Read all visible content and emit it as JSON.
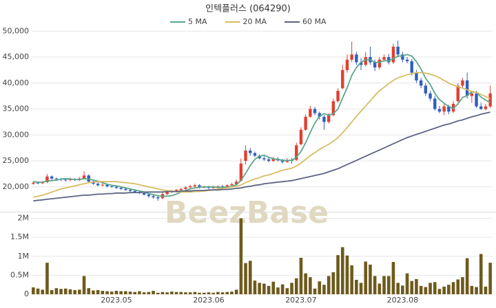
{
  "chart_data": {
    "type": "candlestick",
    "title": "인텍플러스 (064290)",
    "watermark": "BeezBase",
    "up_color": "#e0402f",
    "down_color": "#2f5fc0",
    "volume_color": "#6e5a1c",
    "categories": [
      null,
      null,
      null,
      null,
      null,
      null,
      null,
      null,
      null,
      null,
      null,
      null,
      null,
      null,
      null,
      null,
      null,
      null,
      "2023.05",
      null,
      null,
      null,
      null,
      null,
      null,
      null,
      null,
      null,
      null,
      null,
      null,
      null,
      null,
      null,
      null,
      null,
      null,
      null,
      "2023.06",
      null,
      null,
      null,
      null,
      null,
      null,
      null,
      null,
      null,
      null,
      null,
      null,
      null,
      null,
      null,
      null,
      null,
      null,
      null,
      "2023.07",
      null,
      null,
      null,
      null,
      null,
      null,
      null,
      null,
      null,
      null,
      null,
      null,
      null,
      null,
      null,
      null,
      null,
      null,
      null,
      null,
      null,
      "2023.08",
      null,
      null,
      null,
      null,
      null,
      null,
      null,
      null,
      null,
      null,
      null,
      null,
      null,
      null,
      null,
      null,
      null,
      null,
      null
    ],
    "open": [
      20600,
      20800,
      20700,
      20900,
      22000,
      21600,
      21500,
      21400,
      21300,
      21500,
      21300,
      21600,
      22200,
      21000,
      20600,
      20300,
      20400,
      20100,
      20000,
      19800,
      19600,
      19400,
      19200,
      19000,
      18800,
      18500,
      18200,
      18000,
      17800,
      18600,
      19000,
      19100,
      19400,
      19600,
      19900,
      20100,
      20300,
      19900,
      20000,
      19800,
      19900,
      20100,
      20000,
      20300,
      20500,
      21200,
      25000,
      27000,
      26500,
      26000,
      25500,
      25300,
      25000,
      25400,
      25100,
      24800,
      25200,
      25200,
      28200,
      31000,
      33500,
      35000,
      34200,
      33500,
      32500,
      33800,
      36500,
      39000,
      42500,
      44500,
      45500,
      44000,
      43500,
      45000,
      44000,
      43000,
      44500,
      45000,
      44000,
      47000,
      45500,
      44500,
      44200,
      42000,
      40500,
      39500,
      38000,
      37000,
      35000,
      34500,
      35500,
      34500,
      36500,
      39500,
      40500,
      37500,
      38000,
      35500,
      35000,
      35500
    ],
    "high": [
      21100,
      21000,
      21100,
      22500,
      22200,
      21800,
      21700,
      21600,
      21800,
      21700,
      21900,
      23000,
      22400,
      21300,
      20900,
      20700,
      20600,
      20400,
      20200,
      20000,
      19800,
      19600,
      19500,
      19300,
      19100,
      18800,
      18500,
      18300,
      18900,
      19200,
      19400,
      19600,
      19800,
      20100,
      20400,
      20600,
      20500,
      20200,
      20200,
      20200,
      20300,
      20400,
      20500,
      20800,
      21400,
      25500,
      28000,
      27500,
      26800,
      26300,
      25900,
      25600,
      25800,
      25700,
      25400,
      25500,
      25600,
      28500,
      31500,
      34000,
      35600,
      35400,
      34500,
      33800,
      34200,
      37000,
      39000,
      43500,
      45500,
      48000,
      46000,
      44800,
      46000,
      47000,
      44500,
      45000,
      45500,
      45600,
      47600,
      48200,
      46000,
      45000,
      44600,
      42500,
      41000,
      40000,
      38500,
      37500,
      35600,
      36000,
      35800,
      36500,
      40000,
      41000,
      42000,
      38500,
      38500,
      36200,
      36000,
      39500
    ],
    "low": [
      20400,
      20500,
      20500,
      20700,
      21300,
      21200,
      21100,
      21000,
      21100,
      21100,
      21100,
      21400,
      20800,
      20400,
      20100,
      20100,
      19900,
      19800,
      19600,
      19400,
      19200,
      19000,
      18800,
      18600,
      18300,
      17900,
      17700,
      17300,
      17600,
      18400,
      18800,
      18900,
      19200,
      19400,
      19700,
      19900,
      19700,
      19700,
      19600,
      19600,
      19700,
      19800,
      19800,
      20100,
      20300,
      21000,
      24300,
      26000,
      25700,
      25300,
      25000,
      24700,
      24800,
      24900,
      24500,
      24600,
      24500,
      25000,
      28000,
      30800,
      33300,
      33800,
      33000,
      31000,
      32200,
      33600,
      36200,
      38800,
      42000,
      44000,
      43500,
      42500,
      43200,
      43500,
      42300,
      42600,
      44200,
      43600,
      43700,
      45000,
      44000,
      43800,
      41500,
      40000,
      39000,
      37500,
      36500,
      34700,
      34200,
      33800,
      34000,
      34200,
      36300,
      39000,
      37000,
      36200,
      35200,
      34800,
      34700,
      35200
    ],
    "close": [
      20800,
      20700,
      20900,
      22000,
      21600,
      21500,
      21400,
      21300,
      21500,
      21300,
      21600,
      22200,
      21000,
      20600,
      20300,
      20400,
      20100,
      20000,
      19800,
      19600,
      19400,
      19200,
      19000,
      18800,
      18500,
      18200,
      18000,
      17800,
      18600,
      19000,
      19100,
      19400,
      19600,
      19900,
      20100,
      20300,
      19900,
      20000,
      19800,
      19900,
      20100,
      20000,
      20300,
      20500,
      21000,
      24500,
      27000,
      26500,
      26000,
      25500,
      25300,
      25000,
      25400,
      25100,
      24800,
      25200,
      25000,
      28000,
      31000,
      33500,
      35000,
      34200,
      33500,
      32500,
      33800,
      36500,
      38500,
      42500,
      44500,
      45500,
      44000,
      43500,
      45000,
      44000,
      43000,
      44500,
      45000,
      44000,
      47000,
      45500,
      44500,
      44200,
      42000,
      40500,
      39500,
      38000,
      37000,
      35000,
      34500,
      35500,
      34500,
      36000,
      39500,
      40500,
      37500,
      38000,
      35500,
      35000,
      35500,
      38000
    ],
    "volume": [
      180000,
      150000,
      120000,
      830000,
      110000,
      160000,
      140000,
      150000,
      130000,
      110000,
      120000,
      480000,
      160000,
      100000,
      110000,
      90000,
      80000,
      70000,
      90000,
      80000,
      80000,
      70000,
      60000,
      80000,
      50000,
      60000,
      90000,
      40000,
      60000,
      50000,
      70000,
      60000,
      60000,
      50000,
      50000,
      60000,
      40000,
      40000,
      50000,
      40000,
      60000,
      50000,
      60000,
      70000,
      120000,
      2000000,
      820000,
      880000,
      360000,
      300000,
      280000,
      220000,
      330000,
      180000,
      260000,
      160000,
      300000,
      420000,
      960000,
      550000,
      450000,
      150000,
      340000,
      250000,
      480000,
      580000,
      1030000,
      1240000,
      1020000,
      760000,
      380000,
      300000,
      860000,
      780000,
      480000,
      280000,
      480000,
      480000,
      850000,
      300000,
      230000,
      550000,
      350000,
      400000,
      220000,
      190000,
      300000,
      320000,
      140000,
      200000,
      250000,
      320000,
      390000,
      450000,
      950000,
      220000,
      190000,
      1060000,
      200000,
      830000
    ],
    "series": [
      {
        "name": "5 MA",
        "color": "#5aa58a",
        "values": [
          21000,
          20900,
          20900,
          21100,
          21200,
          21300,
          21500,
          21600,
          21500,
          21400,
          21400,
          21600,
          21500,
          21300,
          21100,
          20800,
          20500,
          20300,
          20200,
          20000,
          19800,
          19600,
          19400,
          19200,
          19000,
          18700,
          18500,
          18300,
          18200,
          18200,
          18300,
          18600,
          19000,
          19300,
          19600,
          19800,
          19900,
          20000,
          20000,
          20000,
          19900,
          19900,
          20000,
          20100,
          20400,
          21300,
          22600,
          24100,
          25300,
          25900,
          26100,
          25700,
          25400,
          25300,
          25100,
          25100,
          25100,
          25700,
          26800,
          28500,
          30500,
          32300,
          33600,
          34100,
          33800,
          34100,
          35000,
          37100,
          39100,
          41500,
          43000,
          44000,
          44500,
          44500,
          44000,
          44000,
          44300,
          44300,
          44700,
          45200,
          45200,
          45500,
          45200,
          44100,
          42700,
          40900,
          39700,
          38000,
          36800,
          36100,
          35500,
          35100,
          36000,
          37200,
          37600,
          38300,
          38200,
          37300,
          36700,
          36300
        ]
      },
      {
        "name": "20 MA",
        "color": "#d6bd62",
        "values": [
          18000,
          18200,
          18400,
          18700,
          19000,
          19300,
          19600,
          19800,
          20000,
          20200,
          20400,
          20600,
          20800,
          20900,
          21000,
          21000,
          21000,
          21000,
          21000,
          20900,
          20800,
          20700,
          20600,
          20400,
          20200,
          20000,
          19800,
          19600,
          19400,
          19300,
          19200,
          19100,
          19000,
          19000,
          19000,
          19100,
          19100,
          19200,
          19300,
          19400,
          19600,
          19700,
          19800,
          20000,
          20100,
          20400,
          20800,
          21200,
          21500,
          21800,
          22100,
          22300,
          22600,
          22900,
          23200,
          23400,
          23600,
          24000,
          24600,
          25300,
          26000,
          26600,
          27200,
          27700,
          28200,
          28800,
          29500,
          30400,
          31400,
          32500,
          33600,
          34600,
          35600,
          36600,
          37600,
          38500,
          39200,
          39900,
          40500,
          41000,
          41300,
          41600,
          41800,
          42000,
          42000,
          41900,
          41700,
          41400,
          41000,
          40500,
          40000,
          39600,
          39300,
          39000,
          38700,
          38400,
          38200,
          37800,
          37400,
          37000
        ]
      },
      {
        "name": "60 MA",
        "color": "#5b6283",
        "values": [
          17300,
          17400,
          17500,
          17600,
          17700,
          17800,
          17900,
          18000,
          18100,
          18200,
          18300,
          18400,
          18400,
          18500,
          18600,
          18600,
          18700,
          18700,
          18800,
          18800,
          18800,
          18900,
          18900,
          18900,
          19000,
          19000,
          19000,
          19000,
          19000,
          19100,
          19100,
          19100,
          19200,
          19200,
          19200,
          19300,
          19300,
          19300,
          19400,
          19400,
          19400,
          19500,
          19500,
          19600,
          19700,
          19800,
          20000,
          20100,
          20300,
          20400,
          20600,
          20700,
          20800,
          20900,
          21000,
          21100,
          21200,
          21400,
          21600,
          21800,
          22000,
          22200,
          22400,
          22600,
          22900,
          23200,
          23500,
          23900,
          24300,
          24700,
          25100,
          25500,
          25900,
          26300,
          26700,
          27100,
          27500,
          27900,
          28300,
          28700,
          29100,
          29500,
          29800,
          30100,
          30400,
          30700,
          31000,
          31300,
          31600,
          31900,
          32100,
          32400,
          32700,
          32900,
          33200,
          33500,
          33700,
          34000,
          34200,
          34400
        ]
      }
    ],
    "ylim": [
      15600,
      50700
    ],
    "yticks": [
      {
        "value": 20000,
        "label": "20,000"
      },
      {
        "value": 25000,
        "label": "25,000"
      },
      {
        "value": 30000,
        "label": "30,000"
      },
      {
        "value": 35000,
        "label": "35,000"
      },
      {
        "value": 40000,
        "label": "40,000"
      },
      {
        "value": 45000,
        "label": "45,000"
      },
      {
        "value": 50000,
        "label": "50,000"
      }
    ],
    "y2lim": [
      0,
      2100000
    ],
    "y2ticks": [
      0,
      {
        "value": 500000,
        "label": "0.5M"
      },
      {
        "value": 1000000,
        "label": "1M"
      },
      {
        "value": 1500000,
        "label": "1.5M"
      },
      {
        "value": 2000000,
        "label": "2M"
      }
    ],
    "grid": true
  }
}
